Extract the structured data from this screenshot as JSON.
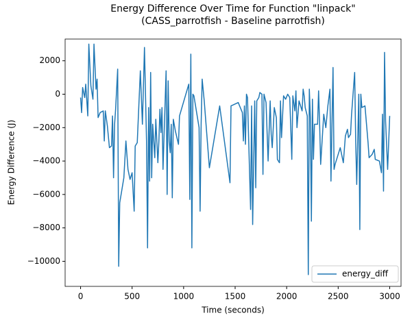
{
  "chart_data": {
    "type": "line",
    "title": "Energy Difference Over Time for Function \"linpack\"",
    "subtitle": "(CASS_parrotfish - Baseline parrotfish)",
    "x_label": "Time (seconds)",
    "y_label": "Energy Difference (J)",
    "legend": "lower right",
    "xlim": [
      -150,
      3110
    ],
    "ylim": [
      -11500,
      3300
    ],
    "xticks": [
      0,
      500,
      1000,
      1500,
      2000,
      2500,
      3000
    ],
    "yticks": [
      {
        "value": -10000,
        "label": "−10000"
      },
      {
        "value": -8000,
        "label": "−8000"
      },
      {
        "value": -6000,
        "label": "−6000"
      },
      {
        "value": -4000,
        "label": "−4000"
      },
      {
        "value": -2000,
        "label": "−2000"
      },
      0,
      2000
    ],
    "x": [
      0,
      10,
      20,
      40,
      50,
      70,
      80,
      100,
      120,
      130,
      150,
      160,
      170,
      190,
      220,
      230,
      240,
      260,
      280,
      300,
      310,
      320,
      330,
      340,
      360,
      370,
      380,
      420,
      440,
      460,
      480,
      500,
      520,
      530,
      550,
      580,
      600,
      620,
      640,
      650,
      660,
      670,
      680,
      690,
      700,
      720,
      730,
      750,
      760,
      770,
      780,
      790,
      800,
      830,
      840,
      850,
      860,
      870,
      880,
      890,
      900,
      920,
      950,
      960,
      1050,
      1060,
      1070,
      1080,
      1090,
      1100,
      1150,
      1160,
      1170,
      1180,
      1200,
      1250,
      1350,
      1450,
      1460,
      1530,
      1570,
      1580,
      1590,
      1600,
      1610,
      1620,
      1650,
      1660,
      1670,
      1690,
      1700,
      1710,
      1730,
      1740,
      1760,
      1770,
      1780,
      1800,
      1820,
      1840,
      1850,
      1860,
      1880,
      1900,
      1910,
      1930,
      1940,
      1950,
      1970,
      1990,
      2010,
      2030,
      2050,
      2060,
      2080,
      2090,
      2100,
      2120,
      2150,
      2160,
      2170,
      2180,
      2200,
      2210,
      2220,
      2230,
      2240,
      2250,
      2260,
      2270,
      2300,
      2310,
      2320,
      2330,
      2360,
      2380,
      2400,
      2420,
      2430,
      2450,
      2460,
      2470,
      2490,
      2520,
      2550,
      2570,
      2590,
      2600,
      2620,
      2630,
      2660,
      2670,
      2680,
      2700,
      2710,
      2720,
      2730,
      2760,
      2790,
      2800,
      2830,
      2850,
      2860,
      2900,
      2920,
      2930,
      2940,
      2950,
      2960,
      2980,
      3000
    ],
    "series": [
      {
        "name": "energy_diff",
        "color": "#1f77b4",
        "values": [
          -200,
          -1100,
          400,
          -200,
          600,
          -1300,
          3000,
          500,
          -300,
          3000,
          300,
          900,
          -1400,
          -1100,
          -1000,
          -2800,
          -1000,
          -1900,
          -3200,
          -3100,
          -1300,
          -5000,
          -1800,
          -900,
          1500,
          -10300,
          -6500,
          -5000,
          -2800,
          -4500,
          -5100,
          -4700,
          -7000,
          -3100,
          -2900,
          1400,
          -1800,
          2800,
          -2800,
          -9200,
          -800,
          -5200,
          1300,
          -5000,
          -1800,
          -3800,
          -1500,
          -4100,
          -2800,
          -900,
          -2300,
          -800,
          -4500,
          1400,
          -6000,
          800,
          -2800,
          -3500,
          -1800,
          -6200,
          -1500,
          -2200,
          -3000,
          -1300,
          600,
          -6300,
          2400,
          -9200,
          0,
          -100,
          -2000,
          -7000,
          -1800,
          900,
          -400,
          -4400,
          -700,
          -5300,
          -700,
          -500,
          -1100,
          -2800,
          -700,
          -3000,
          0,
          -200,
          -6900,
          -700,
          -7800,
          -400,
          -5600,
          -400,
          -200,
          100,
          0,
          -4800,
          0,
          -500,
          -4000,
          -400,
          -2400,
          -3200,
          -800,
          -1400,
          -3900,
          -4100,
          -400,
          -2600,
          -100,
          -300,
          0,
          -200,
          -3900,
          -100,
          -1000,
          200,
          -2000,
          -400,
          -1000,
          300,
          -100,
          -800,
          -1300,
          -10800,
          300,
          -1400,
          -7600,
          -300,
          -3900,
          -1800,
          -1800,
          200,
          -1800,
          -4200,
          -1200,
          -2000,
          -700,
          300,
          -5200,
          1600,
          -4500,
          -4200,
          -3800,
          -3200,
          -4100,
          -2500,
          -2100,
          -2600,
          -2400,
          -1200,
          1300,
          -2800,
          -5400,
          0,
          -8100,
          0,
          -800,
          -700,
          -2900,
          -3800,
          -3600,
          -3300,
          -3900,
          -4000,
          -4700,
          -1200,
          -5800,
          2500,
          -1600,
          -4500,
          -1300
        ]
      }
    ]
  }
}
